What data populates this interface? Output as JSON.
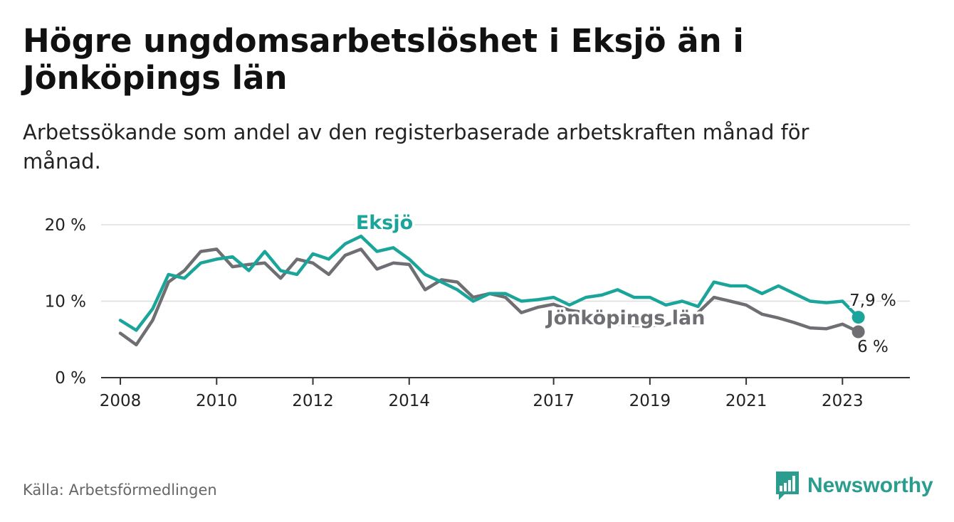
{
  "title": "Högre ungdomsarbetslöshet i Eksjö än i Jönköpings län",
  "subtitle": "Arbetssökande som andel av den registerbaserade arbetskraften månad för månad.",
  "source": "Källa: Arbetsförmedlingen",
  "brand": {
    "name": "Newsworthy",
    "icon": "newsworthy-logo-icon"
  },
  "colors": {
    "eksjo": "#1ba59a",
    "lan": "#6e6e73",
    "grid": "#dddddd",
    "axis": "#333333",
    "brand": "#2a9d8f"
  },
  "chart_data": {
    "type": "line",
    "title": "Högre ungdomsarbetslöshet i Eksjö än i Jönköpings län",
    "xlabel": "",
    "ylabel": "",
    "ylim": [
      0,
      20
    ],
    "xlim": [
      2007.6,
      2024.4
    ],
    "y_ticks": [
      {
        "value": 0,
        "label": "0 %"
      },
      {
        "value": 10,
        "label": "10 %"
      },
      {
        "value": 20,
        "label": "20 %"
      }
    ],
    "x_ticks": [
      {
        "value": 2008,
        "label": "2008"
      },
      {
        "value": 2010,
        "label": "2010"
      },
      {
        "value": 2012,
        "label": "2012"
      },
      {
        "value": 2014,
        "label": "2014"
      },
      {
        "value": 2017,
        "label": "2017"
      },
      {
        "value": 2019,
        "label": "2019"
      },
      {
        "value": 2021,
        "label": "2021"
      },
      {
        "value": 2023,
        "label": "2023"
      }
    ],
    "series": [
      {
        "name": "Eksjö",
        "color": "#1ba59a",
        "x": [
          2008.0,
          2008.33,
          2008.67,
          2009.0,
          2009.33,
          2009.67,
          2010.0,
          2010.33,
          2010.67,
          2011.0,
          2011.33,
          2011.67,
          2012.0,
          2012.33,
          2012.67,
          2013.0,
          2013.33,
          2013.67,
          2014.0,
          2014.33,
          2014.67,
          2015.0,
          2015.33,
          2015.67,
          2016.0,
          2016.33,
          2016.67,
          2017.0,
          2017.33,
          2017.67,
          2018.0,
          2018.33,
          2018.67,
          2019.0,
          2019.33,
          2019.67,
          2020.0,
          2020.33,
          2020.67,
          2021.0,
          2021.33,
          2021.67,
          2022.0,
          2022.33,
          2022.67,
          2023.0,
          2023.33
        ],
        "values": [
          7.5,
          6.2,
          9.0,
          13.5,
          13.0,
          15.0,
          15.5,
          15.8,
          14.0,
          16.5,
          14.0,
          13.5,
          16.2,
          15.5,
          17.5,
          18.5,
          16.5,
          17.0,
          15.5,
          13.5,
          12.5,
          11.5,
          10.0,
          11.0,
          11.0,
          10.0,
          10.2,
          10.5,
          9.5,
          10.5,
          10.8,
          11.5,
          10.5,
          10.5,
          9.5,
          10.0,
          9.3,
          12.5,
          12.0,
          12.0,
          11.0,
          12.0,
          11.0,
          10.0,
          9.8,
          10.0,
          7.9
        ]
      },
      {
        "name": "Jönköpings län",
        "color": "#6e6e73",
        "x": [
          2008.0,
          2008.33,
          2008.67,
          2009.0,
          2009.33,
          2009.67,
          2010.0,
          2010.33,
          2010.67,
          2011.0,
          2011.33,
          2011.67,
          2012.0,
          2012.33,
          2012.67,
          2013.0,
          2013.33,
          2013.67,
          2014.0,
          2014.33,
          2014.67,
          2015.0,
          2015.33,
          2015.67,
          2016.0,
          2016.33,
          2016.67,
          2017.0,
          2017.33,
          2017.67,
          2018.0,
          2018.33,
          2018.67,
          2019.0,
          2019.33,
          2019.67,
          2020.0,
          2020.33,
          2020.67,
          2021.0,
          2021.33,
          2021.67,
          2022.0,
          2022.33,
          2022.67,
          2023.0,
          2023.33
        ],
        "values": [
          5.8,
          4.3,
          7.5,
          12.5,
          14.0,
          16.5,
          16.8,
          14.5,
          14.8,
          15.0,
          13.0,
          15.5,
          15.0,
          13.5,
          16.0,
          16.8,
          14.2,
          15.0,
          14.8,
          11.5,
          12.8,
          12.5,
          10.5,
          11.0,
          10.5,
          8.5,
          9.2,
          9.6,
          8.8,
          8.5,
          8.0,
          7.0,
          6.8,
          6.8,
          6.9,
          7.5,
          8.5,
          10.5,
          10.0,
          9.5,
          8.3,
          7.8,
          7.2,
          6.5,
          6.4,
          7.0,
          6.0
        ]
      }
    ],
    "labels": {
      "eksjo_series_label": "Eksjö",
      "lan_series_label": "Jönköpings län",
      "eksjo_end_label": "7,9 %",
      "lan_end_label": "6 %"
    }
  }
}
